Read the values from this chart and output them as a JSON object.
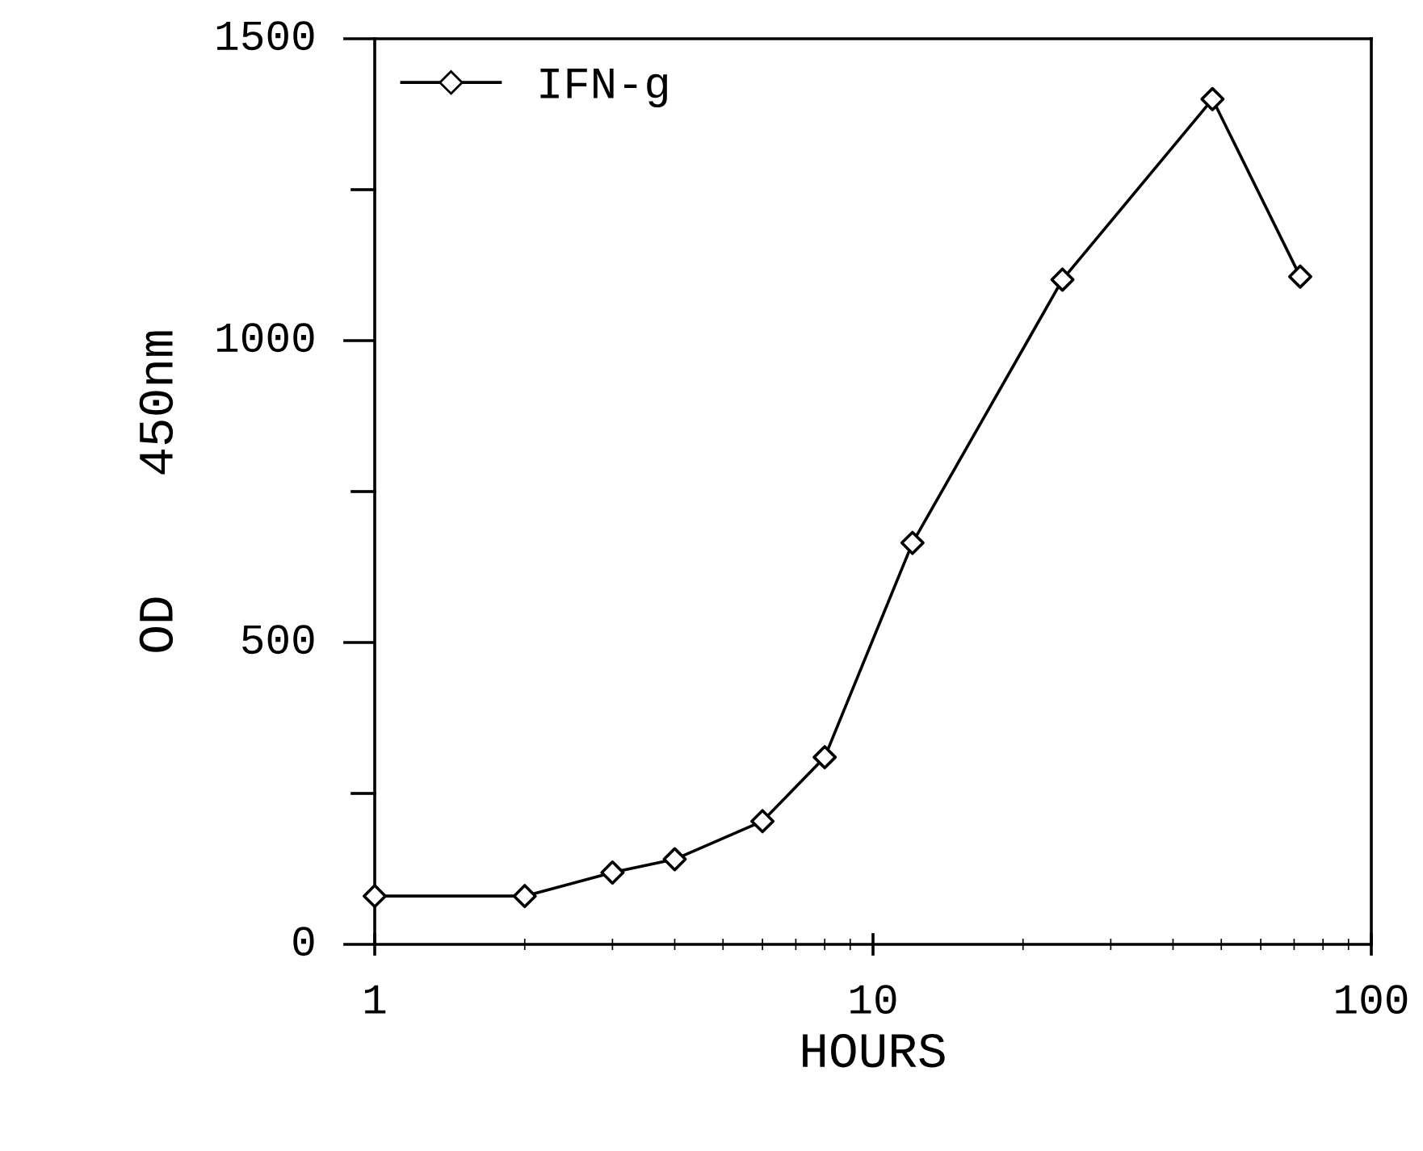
{
  "chart_data": {
    "type": "line",
    "xlabel": "HOURS",
    "ylabel": "OD    450nm",
    "x": [
      1,
      2,
      3,
      4,
      6,
      8,
      12,
      24,
      48,
      72
    ],
    "series": [
      {
        "name": "IFN-g",
        "color": "#000000",
        "values": [
          80,
          80,
          119,
          141,
          204,
          310,
          665,
          1101,
          1400,
          1106
        ]
      }
    ],
    "log": "x",
    "xlim": [
      1,
      100
    ],
    "xticks": [
      1,
      10,
      100
    ],
    "ylim": [
      0,
      1500
    ],
    "yticks": [
      0,
      {
        "value": 250,
        "label": null
      },
      500,
      {
        "value": 750,
        "label": null
      },
      1000,
      {
        "value": 1250,
        "label": null
      },
      1500
    ],
    "grid": false,
    "legend": "top left",
    "marker": "diamond",
    "line_style": "solid"
  }
}
